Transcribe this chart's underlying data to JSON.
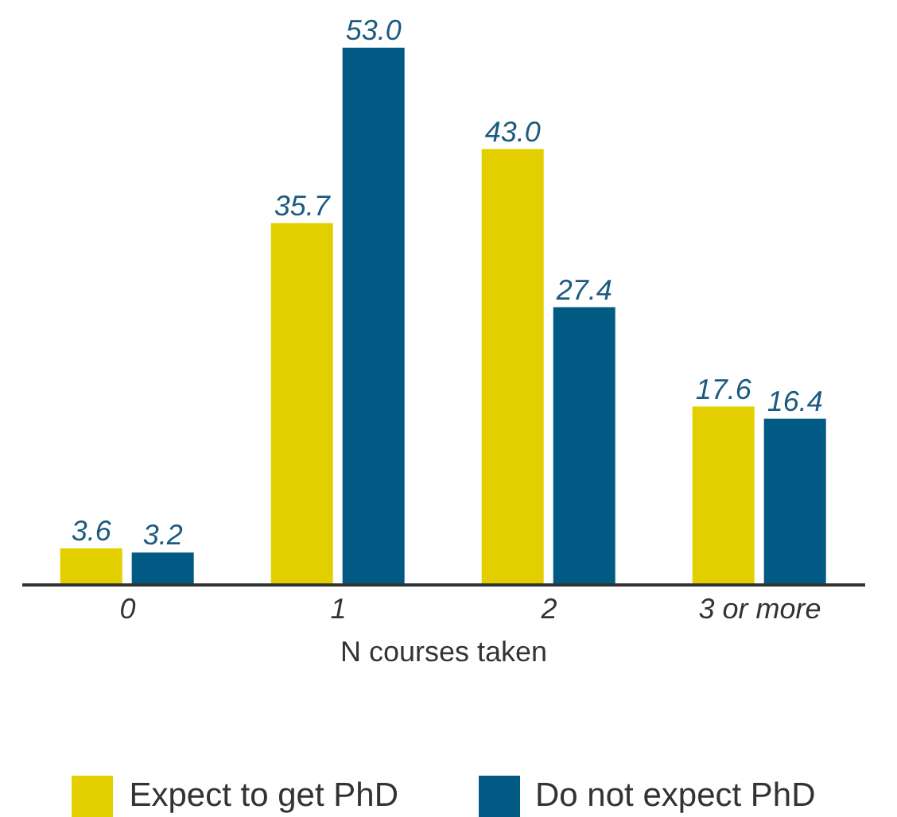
{
  "chart_data": {
    "type": "bar",
    "xlabel": "N courses taken",
    "categories": [
      "0",
      "1",
      "2",
      "3 or more"
    ],
    "series": [
      {
        "name": "Expect to get PhD",
        "color": "#e3cf00",
        "values": [
          3.6,
          35.7,
          43.0,
          17.6
        ],
        "value_labels": [
          "3.6",
          "35.7",
          "43.0",
          "17.6"
        ]
      },
      {
        "name": "Do not expect PhD",
        "color": "#005a83",
        "values": [
          3.2,
          53.0,
          27.4,
          16.4
        ],
        "value_labels": [
          "3.2",
          "53.0",
          "27.4",
          "16.4"
        ]
      }
    ],
    "legend": "bottom",
    "grid": false
  }
}
